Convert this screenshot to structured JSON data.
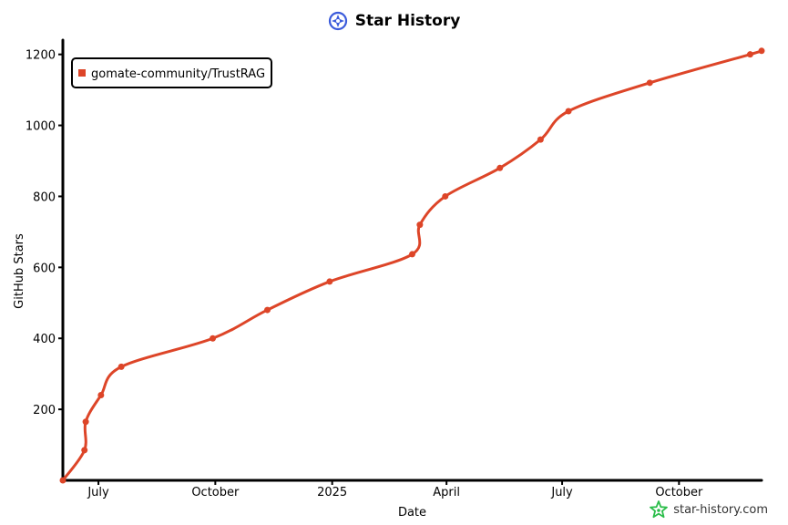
{
  "header": {
    "title": "Star History"
  },
  "watermark": {
    "text": "star-history.com"
  },
  "colors": {
    "series": "#dd4528",
    "axis": "#000000",
    "logo": "#3b5bdb",
    "watermark_icon": "#2bbd4a"
  },
  "icons": {
    "title_logo": "star-history-logo-icon",
    "watermark_logo": "star-history-watermark-icon"
  },
  "chart_data": {
    "type": "line",
    "title": "Star History",
    "xlabel": "Date",
    "ylabel": "GitHub Stars",
    "ylim": [
      0,
      1230
    ],
    "xlim": [
      "2024-06-03",
      "2025-12-05"
    ],
    "yticks": [
      200,
      400,
      600,
      800,
      1000,
      1200
    ],
    "xticks": [
      {
        "date": "2024-07-01",
        "label": "July"
      },
      {
        "date": "2024-10-01",
        "label": "October"
      },
      {
        "date": "2025-01-01",
        "label": "2025"
      },
      {
        "date": "2025-04-01",
        "label": "April"
      },
      {
        "date": "2025-07-01",
        "label": "July"
      },
      {
        "date": "2025-10-01",
        "label": "October"
      }
    ],
    "legend": {
      "position": "top-left"
    },
    "grid": false,
    "series": [
      {
        "name": "gomate-community/TrustRAG",
        "points": [
          {
            "date": "2024-06-03",
            "stars": 0
          },
          {
            "date": "2024-06-20",
            "stars": 85
          },
          {
            "date": "2024-06-21",
            "stars": 165
          },
          {
            "date": "2024-07-03",
            "stars": 240
          },
          {
            "date": "2024-07-19",
            "stars": 320
          },
          {
            "date": "2024-09-29",
            "stars": 400
          },
          {
            "date": "2024-11-11",
            "stars": 480
          },
          {
            "date": "2024-12-30",
            "stars": 560
          },
          {
            "date": "2025-03-05",
            "stars": 637
          },
          {
            "date": "2025-03-11",
            "stars": 720
          },
          {
            "date": "2025-03-31",
            "stars": 800
          },
          {
            "date": "2025-05-13",
            "stars": 880
          },
          {
            "date": "2025-06-14",
            "stars": 960
          },
          {
            "date": "2025-07-06",
            "stars": 1040
          },
          {
            "date": "2025-09-08",
            "stars": 1120
          },
          {
            "date": "2025-11-26",
            "stars": 1200
          },
          {
            "date": "2025-12-05",
            "stars": 1210
          }
        ]
      }
    ]
  }
}
